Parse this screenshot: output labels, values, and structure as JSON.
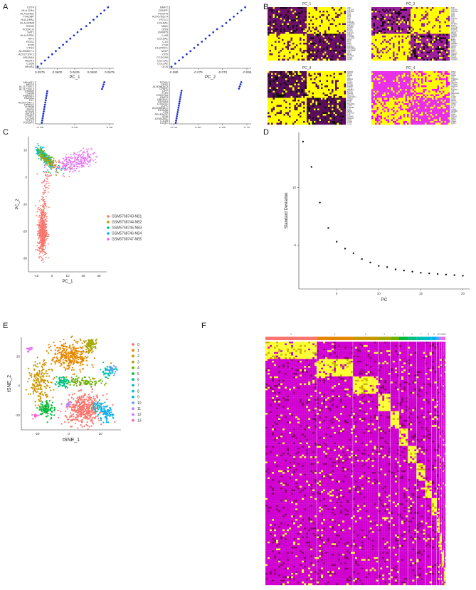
{
  "panel_letters": [
    "A",
    "B",
    "C",
    "D",
    "E",
    "F"
  ],
  "loadings": [
    {
      "pc": "PC_1",
      "genes": [
        "CD74",
        "HLA-DRA",
        "HLA-DRB1",
        "TYROBP",
        "HLA-DPA1",
        "HLA-DRB5",
        "SRGN",
        "FCER1G",
        "SAT1",
        "HLA-DPB1",
        "AIF1",
        "RGS1",
        "IFI30",
        "CTSS",
        "AL390807.1",
        "AC027100.1",
        "MS4A6A",
        "NEAT1",
        "C1QB",
        "NR4A2"
      ],
      "ticks": [
        "0.0575",
        "0.0600",
        "0.0625",
        "0.0650",
        "0.0675"
      ]
    },
    {
      "pc": "PC_2",
      "genes": [
        "BMP2",
        "CENPF",
        "POSTN",
        "AC007952.4",
        "FSTL1",
        "COL6A1",
        "MDK",
        "DDN",
        "IGFBP5",
        "LUM",
        "COL3A1",
        "C1S",
        "C1R",
        "C1QTNF1",
        "MGP",
        "CFD",
        "CCDC80",
        "COL1A1",
        "COL1A2",
        "DCN"
      ],
      "ticks": [
        "-0.080",
        "-0.075",
        "-0.070",
        "-0.065"
      ]
    },
    {
      "pc": "PC_3",
      "genes": [
        "MALAT1",
        "MEG3",
        "AL117190.1",
        "AL117190.2",
        "STMN2",
        "CHGB",
        "PNRSE1",
        "HMGA1",
        "TKT",
        "AC007240.1",
        "PRRG1",
        "IFITM2",
        "RPS3",
        "IFITM3",
        "KRT18",
        "CYBE1",
        "CLDN5",
        "TCF15",
        "POU5F1"
      ],
      "ticks": [
        "-0.05",
        "0.00",
        "0.05"
      ]
    },
    {
      "pc": "PC_4",
      "genes": [
        "PCM1",
        "CD52",
        "AL509834.3",
        "CRIP1",
        "CFP",
        "FOR",
        "CORO1A",
        "EMP3",
        "UBXN11",
        "S100A4",
        "LGALS1",
        "LCP1",
        "AC008956.1",
        "S100A6",
        "LTB",
        "SELENOF",
        "A2M",
        "AZMI-AS1",
        "C1QB",
        "C1QC"
      ],
      "ticks": [
        "-0.05",
        "0.00",
        "0.05",
        "0.10"
      ]
    }
  ],
  "heatmaps": [
    {
      "title": "PC_1",
      "genes": [
        "CFD",
        "COL1A2",
        "COL3A1",
        "DCN",
        "LUM",
        "MGP",
        "C1R",
        "C1S",
        "CCDC80",
        "C1QTNF1",
        "COL6A1",
        "IGFBP5",
        "FSTL1",
        "POSTN",
        "COL1A1",
        "SRGN",
        "TYROBP",
        "HLA-DRA",
        "CD74",
        "AIF1",
        "IFI30",
        "CTSS",
        "FCER1G",
        "HLA-DRB1",
        "HLA-DPA1",
        "SAT1",
        "RGS1",
        "MS4A6A",
        "C1QB",
        "NEAT1"
      ]
    },
    {
      "title": "PC_2",
      "genes": [
        "DCN",
        "COL3A1",
        "COL1A1",
        "LUM",
        "CFD",
        "MGP",
        "COL6A1",
        "C1R",
        "C1S",
        "IGFBP5",
        "FSTL1",
        "CCDC80",
        "POSTN",
        "COL1A2",
        "SRGN",
        "STMN2",
        "CENPF",
        "MDK",
        "BMP2",
        "TUBB",
        "HMGB2",
        "TOP2A",
        "MKI67",
        "CKS2",
        "CDK1",
        "PTTG1",
        "UBE2C",
        "BIRC5",
        "H2AFZ",
        "NUSAP1"
      ]
    },
    {
      "title": "PC_3",
      "genes": [
        "STMN2",
        "MEG3",
        "CHGB",
        "TKT",
        "PRRG1",
        "RPS3",
        "IFITM2",
        "IFITM3",
        "CLDN5",
        "TCF15",
        "POU5F1",
        "KRT18",
        "HMGA1",
        "MALAT1",
        "AL117190.1",
        "CYBE1",
        "RGS5",
        "CST3",
        "HLA-DRA",
        "CD74",
        "TYROBP",
        "AIF1",
        "SRGN",
        "FCER1G",
        "LYZ",
        "S100A4",
        "LGALS1",
        "CD52",
        "C1QB",
        "C1QC"
      ]
    },
    {
      "title": "PC_4",
      "genes": [
        "PCM1",
        "CD52",
        "CRIP1",
        "CFP",
        "CORO1A",
        "EMP3",
        "UBXN11",
        "S100A4",
        "LGALS1",
        "LCP1",
        "S100A6",
        "LTB",
        "SELENOF",
        "A2M",
        "C1QB",
        "C1QC",
        "APOE",
        "APOC1",
        "CTSB",
        "CTSD",
        "FTL",
        "LGMN",
        "GPNMB",
        "PSAP",
        "CD68",
        "TREM2",
        "SPP1",
        "MMP9",
        "FABP5",
        "ACP5"
      ]
    }
  ],
  "pca": {
    "xlabel": "PC_1",
    "ylabel": "PC_2",
    "xticks": [
      "-10",
      "0",
      "10",
      "20",
      "30"
    ],
    "yticks": [
      "10",
      "0",
      "-10",
      "-20",
      "-30"
    ],
    "legend": [
      {
        "label": "GSM5768743-NB1",
        "color": "#f8766d"
      },
      {
        "label": "GSM5768744-NB2",
        "color": "#a3a500"
      },
      {
        "label": "GSM5768745-NB3",
        "color": "#00bf7d"
      },
      {
        "label": "GSM5768746-NB4",
        "color": "#00b0f6"
      },
      {
        "label": "GSM5768747-NB5",
        "color": "#e76bf3"
      }
    ]
  },
  "chart_data": [
    {
      "type": "scatter",
      "panel": "D",
      "xlabel": "PC",
      "ylabel": "Standard Deviation",
      "x": [
        1,
        2,
        3,
        4,
        5,
        6,
        7,
        8,
        9,
        10,
        11,
        12,
        13,
        14,
        15,
        16,
        17,
        18,
        19,
        20
      ],
      "y": [
        14.0,
        11.8,
        8.7,
        6.5,
        5.3,
        4.7,
        4.3,
        3.8,
        3.5,
        3.2,
        3.1,
        2.9,
        2.8,
        2.7,
        2.6,
        2.55,
        2.5,
        2.45,
        2.4,
        2.35
      ],
      "xticks": [
        "5",
        "10",
        "15",
        "20"
      ],
      "yticks": [
        "5",
        "10"
      ],
      "xlim": [
        0.5,
        20.8
      ],
      "ylim": [
        1.2,
        14.8
      ]
    }
  ],
  "tsne": {
    "xlabel": "tSNE_1",
    "ylabel": "tSNE_2",
    "xticks": [
      "-20",
      "0",
      "20"
    ],
    "yticks": [
      "20",
      "0",
      "-20"
    ],
    "clusters": [
      {
        "label": "0",
        "color": "#f8766d"
      },
      {
        "label": "1",
        "color": "#e58700"
      },
      {
        "label": "2",
        "color": "#c99800"
      },
      {
        "label": "3",
        "color": "#a3a500"
      },
      {
        "label": "4",
        "color": "#6bb100"
      },
      {
        "label": "5",
        "color": "#00ba38"
      },
      {
        "label": "6",
        "color": "#00bf7d"
      },
      {
        "label": "7",
        "color": "#00c0af"
      },
      {
        "label": "8",
        "color": "#00bcd8"
      },
      {
        "label": "9",
        "color": "#00b0f6"
      },
      {
        "label": "10",
        "color": "#619cff"
      },
      {
        "label": "11",
        "color": "#b983ff"
      },
      {
        "label": "12",
        "color": "#e76bf3"
      },
      {
        "label": "13",
        "color": "#fd61d1"
      }
    ]
  },
  "cluster_heatmap": {
    "header_labels": [
      "0",
      "1",
      "2",
      "3",
      "4",
      "5",
      "6",
      "7",
      "8",
      "9",
      "10",
      "11",
      "12",
      "13"
    ],
    "widths": [
      71,
      50,
      35,
      17,
      12,
      12,
      12,
      12,
      9,
      7,
      4,
      3,
      3,
      2
    ]
  }
}
